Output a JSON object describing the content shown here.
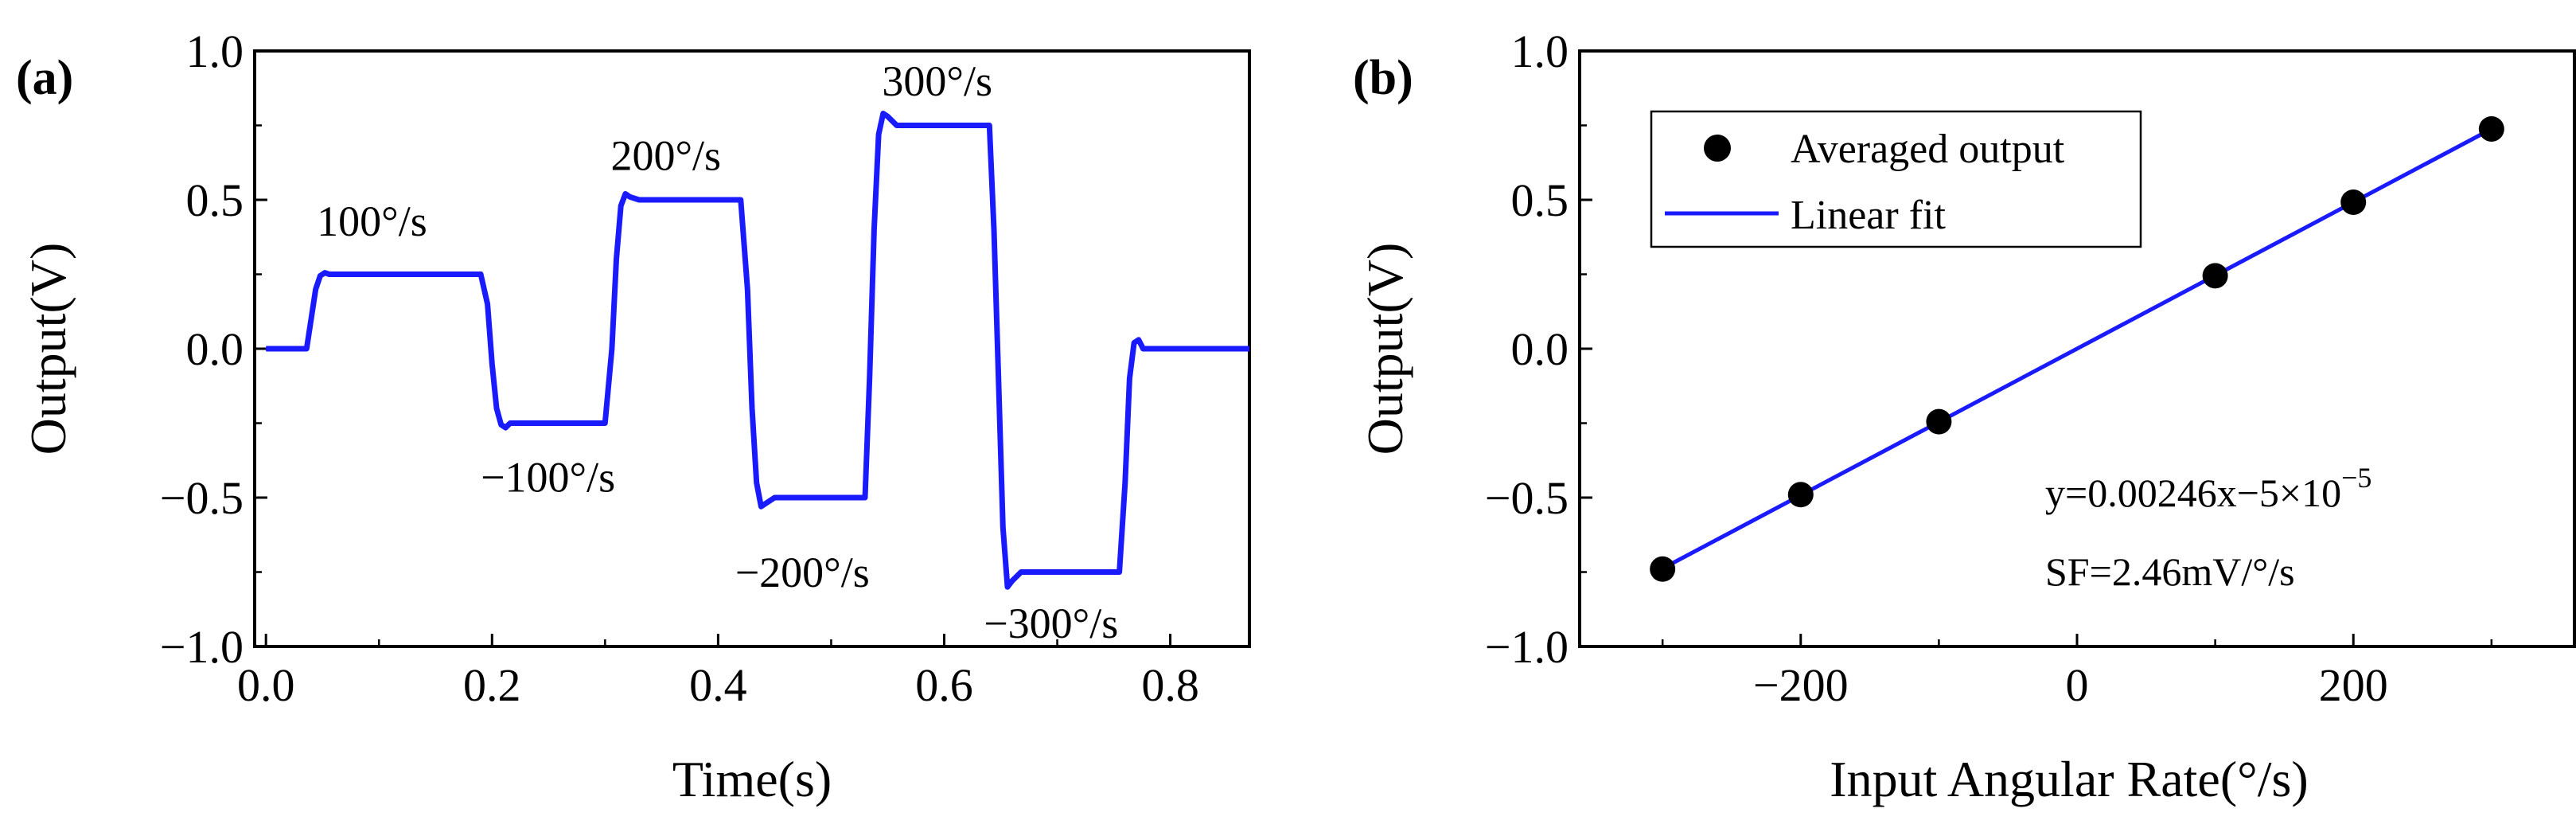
{
  "chart_data": [
    {
      "panel_label": "(a)",
      "type": "line",
      "xlabel": "Time(s)",
      "ylabel": "Output(V)",
      "xlim": [
        -0.01,
        0.87
      ],
      "ylim": [
        -1.0,
        1.0
      ],
      "xticks": [
        0.0,
        0.2,
        0.4,
        0.6,
        0.8
      ],
      "yticks": [
        -1.0,
        -0.5,
        0.0,
        0.5,
        1.0
      ],
      "xtick_labels": [
        "0.0",
        "0.2",
        "0.4",
        "0.6",
        "0.8"
      ],
      "ytick_labels": [
        "−1.0",
        "−0.5",
        "0.0",
        "0.5",
        "1.0"
      ],
      "series": [
        {
          "name": "Output",
          "color": "#1a1aff",
          "x": [
            0.0,
            0.036,
            0.04,
            0.044,
            0.048,
            0.052,
            0.056,
            0.07,
            0.19,
            0.196,
            0.2,
            0.204,
            0.208,
            0.212,
            0.216,
            0.23,
            0.3,
            0.306,
            0.31,
            0.314,
            0.318,
            0.322,
            0.33,
            0.34,
            0.42,
            0.426,
            0.43,
            0.434,
            0.438,
            0.442,
            0.45,
            0.46,
            0.53,
            0.534,
            0.538,
            0.542,
            0.546,
            0.55,
            0.558,
            0.57,
            0.64,
            0.644,
            0.648,
            0.652,
            0.656,
            0.66,
            0.668,
            0.68,
            0.755,
            0.76,
            0.764,
            0.768,
            0.772,
            0.776,
            0.784,
            0.8,
            0.87
          ],
          "y": [
            0.0,
            0.0,
            0.1,
            0.2,
            0.245,
            0.255,
            0.25,
            0.25,
            0.25,
            0.15,
            -0.05,
            -0.2,
            -0.255,
            -0.265,
            -0.25,
            -0.25,
            -0.25,
            0.0,
            0.3,
            0.48,
            0.52,
            0.51,
            0.5,
            0.5,
            0.5,
            0.2,
            -0.2,
            -0.45,
            -0.53,
            -0.52,
            -0.5,
            -0.5,
            -0.5,
            -0.1,
            0.4,
            0.72,
            0.79,
            0.78,
            0.75,
            0.75,
            0.75,
            0.4,
            -0.1,
            -0.6,
            -0.8,
            -0.78,
            -0.75,
            -0.75,
            -0.75,
            -0.45,
            -0.1,
            0.02,
            0.03,
            0.0,
            0.0,
            0.0,
            0.0
          ]
        }
      ],
      "annotations": [
        {
          "text": "100°/s",
          "x": 0.045,
          "y": 0.38
        },
        {
          "text": "−100°/s",
          "x": 0.19,
          "y": -0.48
        },
        {
          "text": "200°/s",
          "x": 0.305,
          "y": 0.6
        },
        {
          "text": "−200°/s",
          "x": 0.415,
          "y": -0.8
        },
        {
          "text": "300°/s",
          "x": 0.545,
          "y": 0.85
        },
        {
          "text": "−300°/s",
          "x": 0.635,
          "y": -0.97
        }
      ]
    },
    {
      "panel_label": "(b)",
      "type": "scatter",
      "xlabel": "Input Angular Rate(°/s)",
      "ylabel": "Output(V)",
      "xlim": [
        -360,
        360
      ],
      "ylim": [
        -1.0,
        1.0
      ],
      "xticks": [
        -200,
        0,
        200
      ],
      "yticks": [
        -1.0,
        -0.5,
        0.0,
        0.5,
        1.0
      ],
      "xtick_labels": [
        "−200",
        "0",
        "200"
      ],
      "ytick_labels": [
        "−1.0",
        "−0.5",
        "0.0",
        "0.5",
        "1.0"
      ],
      "series": [
        {
          "name": "Averaged output",
          "type": "scatter",
          "color": "#000000",
          "x": [
            -300,
            -200,
            -100,
            100,
            200,
            300
          ],
          "y": [
            -0.74,
            -0.49,
            -0.245,
            0.245,
            0.492,
            0.738
          ]
        },
        {
          "name": "Linear fit",
          "type": "line",
          "color": "#1a1aff",
          "x": [
            -300,
            300
          ],
          "y": [
            -0.738,
            0.738
          ]
        }
      ],
      "legend": {
        "position": "top-left",
        "entries": [
          "Averaged output",
          "Linear fit"
        ]
      },
      "fit_equation": {
        "prefix": "y=0.00246x−5×10",
        "exponent": "−5"
      },
      "scale_factor_text": "SF=2.46mV/°/s"
    }
  ]
}
